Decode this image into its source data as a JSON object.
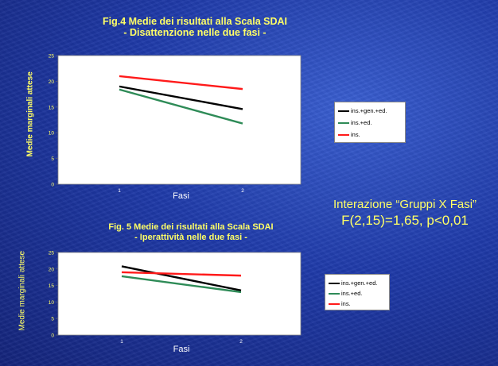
{
  "chart_data": [
    {
      "type": "line",
      "title": "Fig.4 Medie dei risultati alla Scala SDAI",
      "subtitle": "- Disattenzione nelle due fasi -",
      "xlabel": "Fasi",
      "ylabel": "Medie marginali attese",
      "categories": [
        "1",
        "2"
      ],
      "ylim": [
        0,
        25
      ],
      "yticks": [
        0,
        5,
        10,
        15,
        20,
        25
      ],
      "grid": false,
      "legend_position": "right",
      "series": [
        {
          "name": "ins.+gen.+ed.",
          "values": [
            19.0,
            14.6
          ],
          "color": "#000000"
        },
        {
          "name": "ins.+ed.",
          "values": [
            18.4,
            11.8
          ],
          "color": "#2e8b57"
        },
        {
          "name": "ins.",
          "values": [
            21.0,
            18.5
          ],
          "color": "#ff1a1a"
        }
      ]
    },
    {
      "type": "line",
      "title": "Fig. 5 Medie dei risultati alla Scala SDAI",
      "subtitle": "- Iperattività nelle due fasi -",
      "xlabel": "Fasi",
      "ylabel": "Medie marginali attese",
      "categories": [
        "1",
        "2"
      ],
      "ylim": [
        0,
        25
      ],
      "yticks": [
        0,
        5,
        10,
        15,
        20,
        25
      ],
      "grid": false,
      "legend_position": "right",
      "series": [
        {
          "name": "ins.+gen.+ed.",
          "values": [
            20.8,
            13.5
          ],
          "color": "#000000"
        },
        {
          "name": "ins.+ed.",
          "values": [
            17.8,
            13.0
          ],
          "color": "#2e8b57"
        },
        {
          "name": "ins.",
          "values": [
            19.0,
            18.0
          ],
          "color": "#ff1a1a"
        }
      ]
    }
  ],
  "interaction": {
    "line1": "Interazione “Gruppi X Fasi”",
    "line2": "F(2,15)=1,65, p<0,01"
  },
  "colors": {
    "title": "#ffff66",
    "background": "#1f3aa8",
    "plot_area": "#ffffff"
  }
}
